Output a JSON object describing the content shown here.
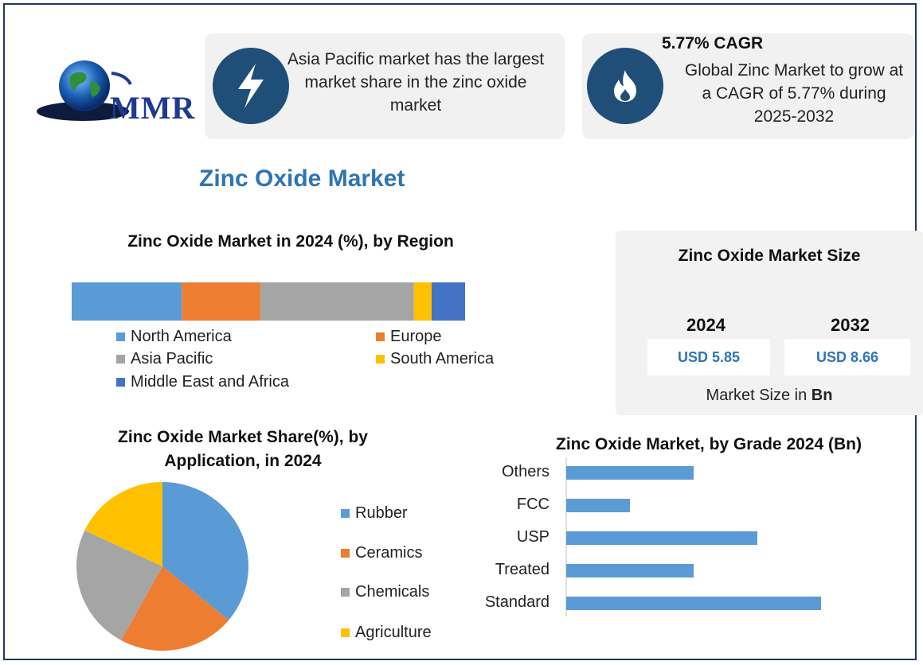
{
  "logo": {
    "text": "MMR"
  },
  "cards": {
    "region_note": "Asia Pacific market has the largest market share in the zinc oxide market",
    "cagr_heading": "5.77% CAGR",
    "cagr_note": "Global Zinc Market to grow at a CAGR of 5.77% during 2025-2032",
    "bolt_icon": "lightning-bolt-icon",
    "flame_icon": "flame-icon"
  },
  "main_title": "Zinc Oxide Market",
  "market_size": {
    "title": "Zinc Oxide Market Size",
    "year1": "2024",
    "value1": "USD 5.85",
    "year2": "2032",
    "value2": "USD 8.66",
    "footer_prefix": "Market Size in ",
    "footer_unit": "Bn"
  },
  "colors": {
    "blue": "#5b9bd5",
    "orange": "#ed7d31",
    "gray": "#a5a5a5",
    "yellow": "#ffc000",
    "darkblue": "#4472c4",
    "navy": "#1f4e79"
  },
  "chart_data": [
    {
      "type": "bar",
      "orientation": "horizontal-stacked",
      "title": "Zinc Oxide Market in 2024 (%), by Region",
      "series": [
        {
          "name": "North America",
          "value": 28,
          "color": "#5b9bd5"
        },
        {
          "name": "Europe",
          "value": 20,
          "color": "#ed7d31"
        },
        {
          "name": "Asia Pacific",
          "value": 39,
          "color": "#a5a5a5"
        },
        {
          "name": "South America",
          "value": 4.5,
          "color": "#ffc000"
        },
        {
          "name": "Middle East and Africa",
          "value": 8.5,
          "color": "#4472c4"
        }
      ],
      "legend": "bottom"
    },
    {
      "type": "pie",
      "title_line1": "Zinc Oxide Market Share(%), by",
      "title_line2": "Application, in 2024",
      "slices": [
        {
          "name": "Rubber",
          "value": 36,
          "color": "#5b9bd5"
        },
        {
          "name": "Ceramics",
          "value": 22,
          "color": "#ed7d31"
        },
        {
          "name": "Chemicals",
          "value": 24,
          "color": "#a5a5a5"
        },
        {
          "name": "Agriculture",
          "value": 18,
          "color": "#ffc000"
        }
      ],
      "legend": "right"
    },
    {
      "type": "bar",
      "orientation": "horizontal",
      "title": "Zinc Oxide Market, by Grade 2024 (Bn)",
      "categories": [
        "Others",
        "FCC",
        "USP",
        "Treated",
        "Standard"
      ],
      "values": [
        2.0,
        1.0,
        3.0,
        2.0,
        4.0
      ],
      "xlim": [
        0,
        5
      ],
      "color": "#5b9bd5",
      "grid": false
    }
  ]
}
